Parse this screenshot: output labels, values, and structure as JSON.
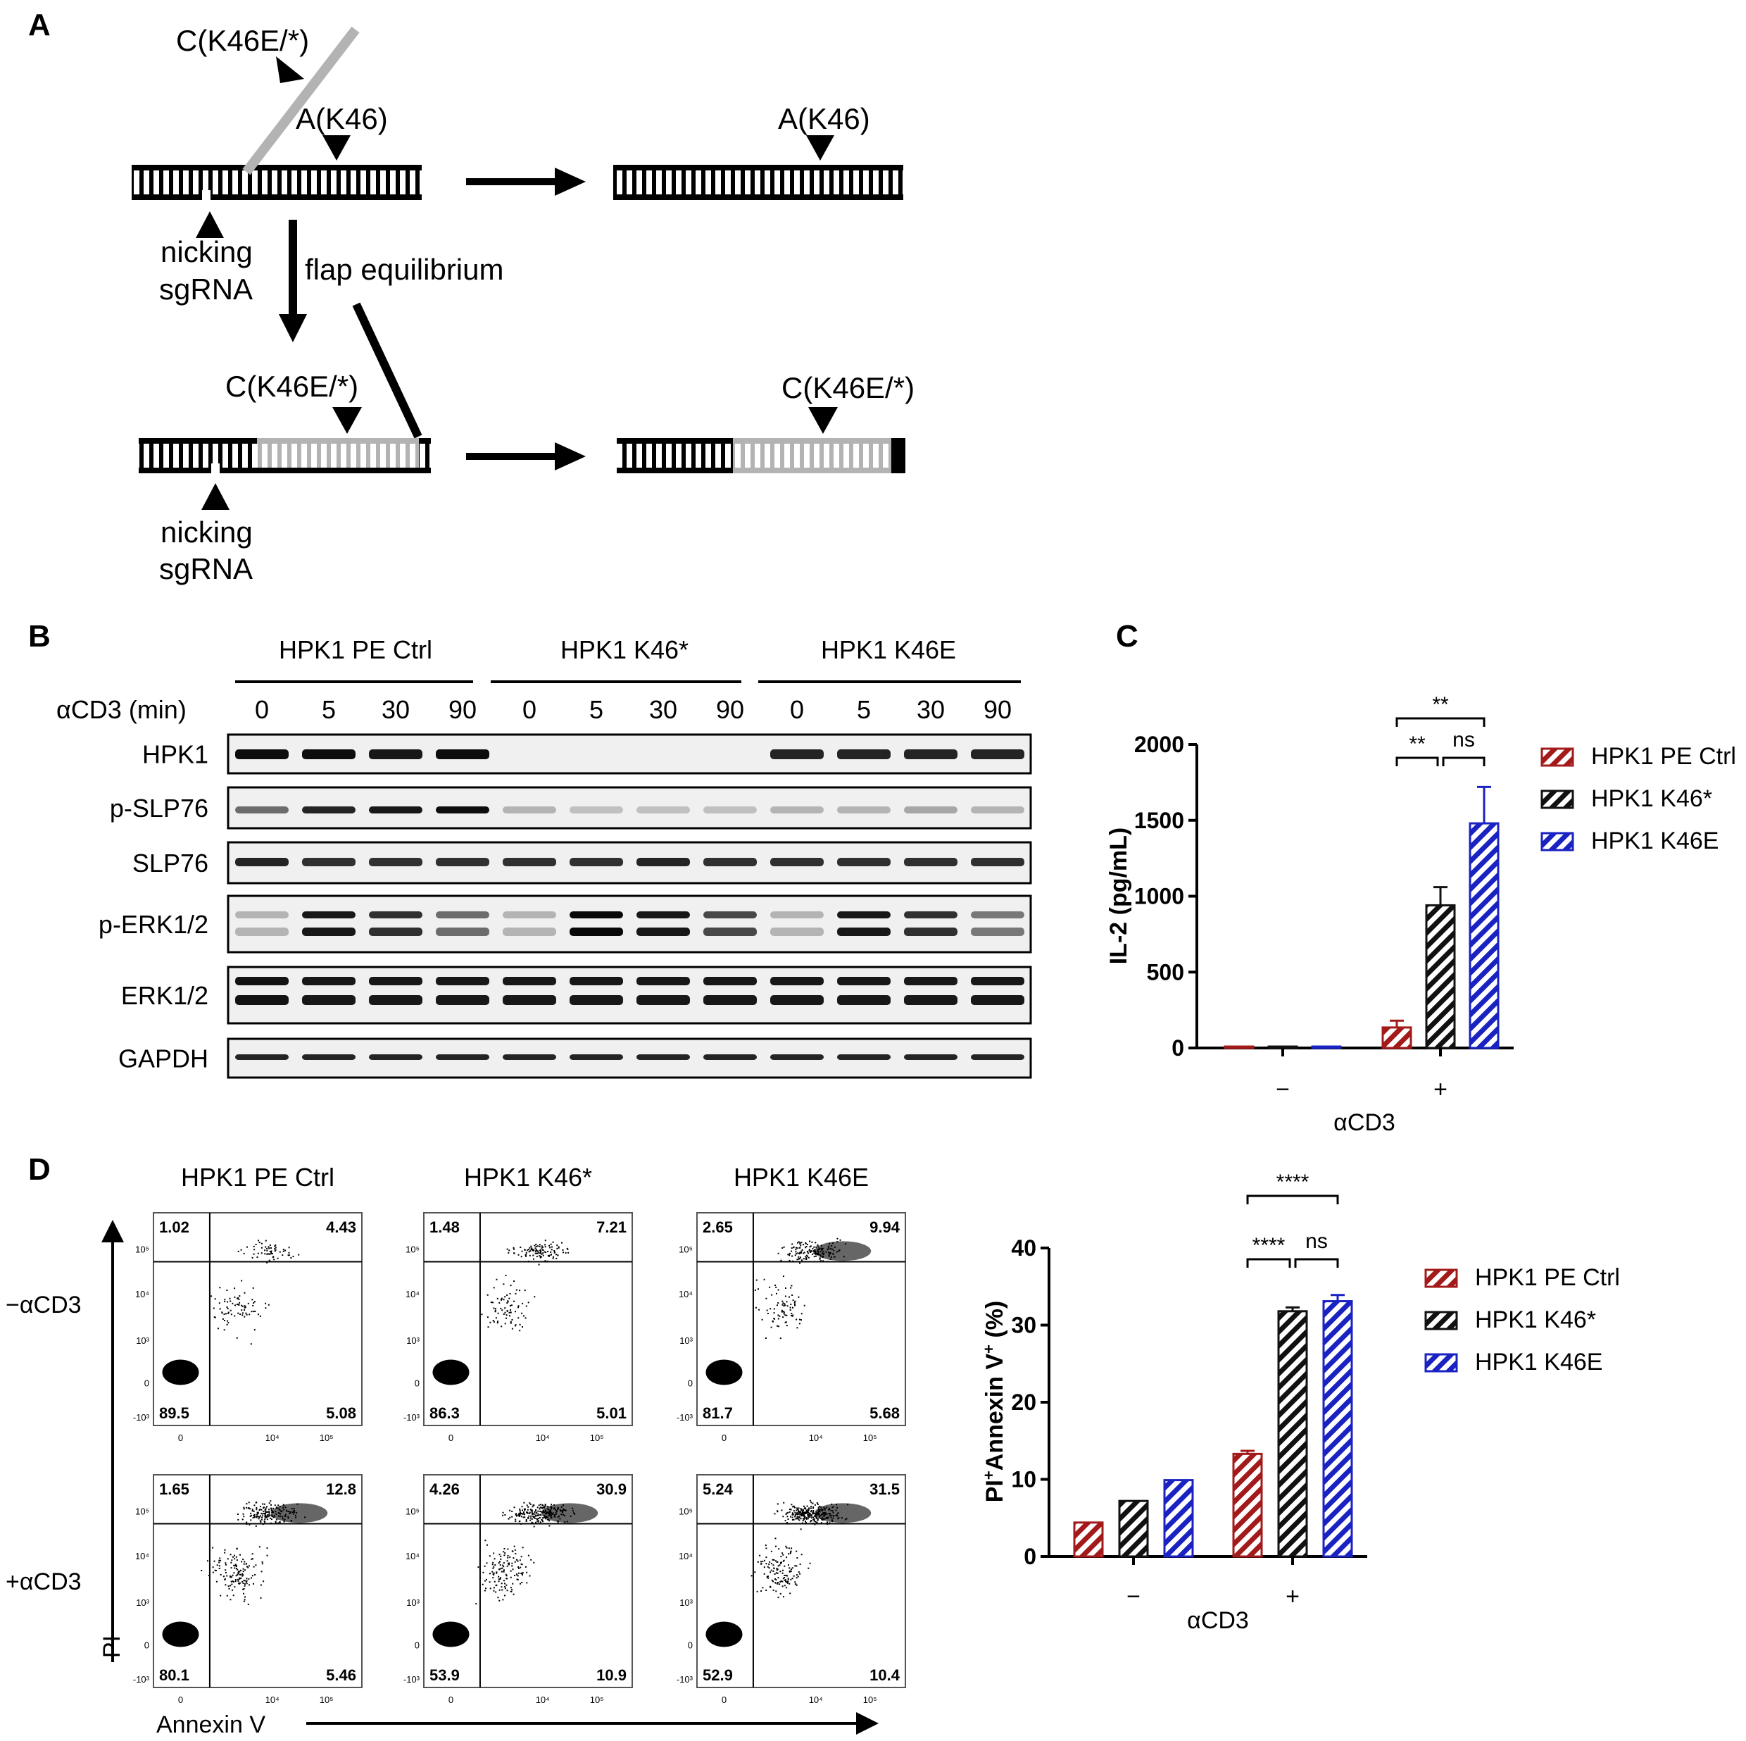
{
  "panels": {
    "A": "A",
    "B": "B",
    "C": "C",
    "D": "D"
  },
  "colors": {
    "ctrl": "#a31a1a",
    "k46stop": "#111111",
    "k46e": "#1a22c2",
    "grey": "#b3b3b3"
  },
  "panel_a": {
    "flap_label_top": "C(K46E/*)",
    "original_label": "A(K46)",
    "result_original_label": "A(K46)",
    "nick_label_1": "nicking",
    "nick_label_1b": "sgRNA",
    "equilibrium_label": "flap equilibrium",
    "edited_label": "C(K46E/*)",
    "result_edited_label": "C(K46E/*)",
    "nick_label_2": "nicking",
    "nick_label_2b": "sgRNA"
  },
  "panel_b": {
    "groups": [
      "HPK1 PE Ctrl",
      "HPK1 K46*",
      "HPK1 K46E"
    ],
    "time_label": "αCD3 (min)",
    "timepoints": [
      "0",
      "5",
      "30",
      "90",
      "0",
      "5",
      "30",
      "90",
      "0",
      "5",
      "30",
      "90"
    ],
    "blots": [
      "HPK1",
      "p-SLP76",
      "SLP76",
      "p-ERK1/2",
      "ERK1/2",
      "GAPDH"
    ]
  },
  "chart_data": [
    {
      "type": "bar",
      "panel": "C",
      "ylabel": "IL-2 (pg/mL)",
      "xlabel": "αCD3",
      "categories": [
        "−",
        "+"
      ],
      "ylim": [
        0,
        2000
      ],
      "yticks": [
        "0",
        "500",
        "1000",
        "1500",
        "2000"
      ],
      "series": [
        {
          "name": "HPK1 PE Ctrl",
          "values": [
            5,
            135
          ],
          "errors": [
            0,
            45
          ]
        },
        {
          "name": "HPK1 K46*",
          "values": [
            8,
            940
          ],
          "errors": [
            0,
            120
          ]
        },
        {
          "name": "HPK1 K46E",
          "values": [
            5,
            1480
          ],
          "errors": [
            0,
            240
          ]
        }
      ],
      "significance": [
        {
          "label": "**",
          "from": "HPK1 PE Ctrl",
          "to": "HPK1 K46E"
        },
        {
          "label": "**",
          "from": "HPK1 PE Ctrl",
          "to": "HPK1 K46*"
        },
        {
          "label": "ns",
          "from": "HPK1 K46*",
          "to": "HPK1 K46E"
        }
      ],
      "legend": "right"
    },
    {
      "type": "bar",
      "panel": "D",
      "ylabel_main": "PI",
      "ylabel_sup1": "+",
      "ylabel_mid": "Annexin V",
      "ylabel_sup2": "+",
      "ylabel_tail": " (%)",
      "xlabel": "αCD3",
      "categories": [
        "−",
        "+"
      ],
      "ylim": [
        0,
        40
      ],
      "yticks": [
        "0",
        "10",
        "20",
        "30",
        "40"
      ],
      "series": [
        {
          "name": "HPK1 PE Ctrl",
          "values": [
            4.4,
            13.3
          ],
          "errors": [
            0,
            0.4
          ]
        },
        {
          "name": "HPK1 K46*",
          "values": [
            7.2,
            31.8
          ],
          "errors": [
            0,
            0.5
          ]
        },
        {
          "name": "HPK1 K46E",
          "values": [
            9.9,
            33.1
          ],
          "errors": [
            0,
            0.8
          ]
        }
      ],
      "significance": [
        {
          "label": "****",
          "from": "HPK1 PE Ctrl",
          "to": "HPK1 K46E"
        },
        {
          "label": "****",
          "from": "HPK1 PE Ctrl",
          "to": "HPK1 K46*"
        },
        {
          "label": "ns",
          "from": "HPK1 K46*",
          "to": "HPK1 K46E"
        }
      ],
      "legend": "right"
    }
  ],
  "panel_d_flow": {
    "columns": [
      "HPK1 PE Ctrl",
      "HPK1 K46*",
      "HPK1 K46E"
    ],
    "rows": [
      "−αCD3",
      "+αCD3"
    ],
    "x_axis_label": "Annexin V",
    "y_axis_label": "PI",
    "quadrants": [
      [
        [
          "1.02",
          "4.43",
          "89.5",
          "5.08"
        ],
        [
          "1.48",
          "7.21",
          "86.3",
          "5.01"
        ],
        [
          "2.65",
          "9.94",
          "81.7",
          "5.68"
        ]
      ],
      [
        [
          "1.65",
          "12.8",
          "80.1",
          "5.46"
        ],
        [
          "4.26",
          "30.9",
          "53.9",
          "10.9"
        ],
        [
          "5.24",
          "31.5",
          "52.9",
          "10.4"
        ]
      ]
    ]
  }
}
